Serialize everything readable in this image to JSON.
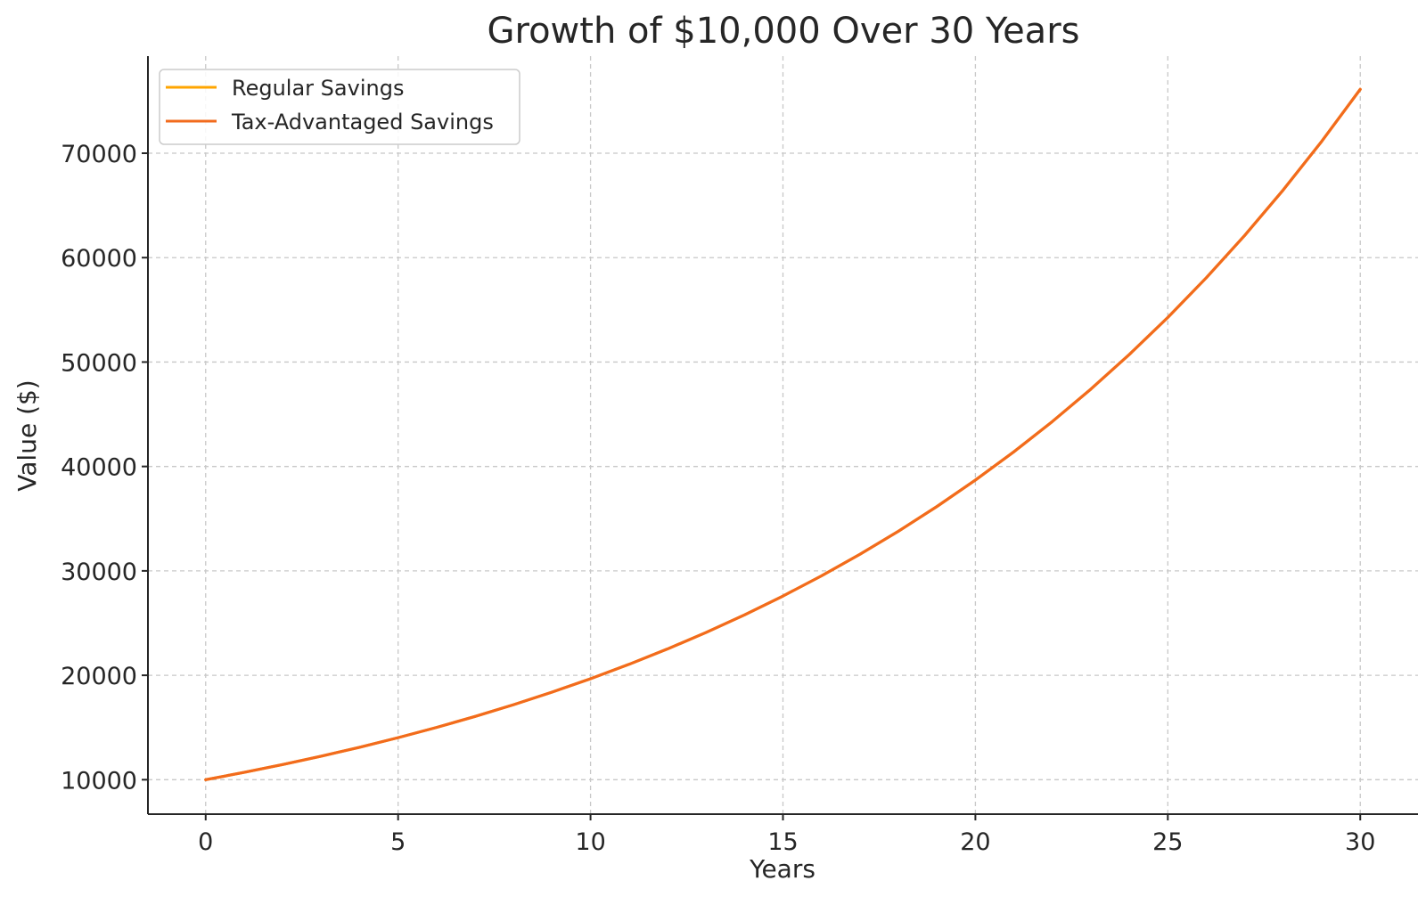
{
  "chart_data": {
    "type": "line",
    "title": "Growth of $10,000 Over 30 Years",
    "xlabel": "Years",
    "ylabel": "Value ($)",
    "xlim": [
      -1.5,
      31.5
    ],
    "ylim": [
      6700,
      79300
    ],
    "xticks": [
      0,
      5,
      10,
      15,
      20,
      25,
      30
    ],
    "yticks": [
      10000,
      20000,
      30000,
      40000,
      50000,
      60000,
      70000
    ],
    "xtick_labels": [
      "0",
      "5",
      "10",
      "15",
      "20",
      "25",
      "30"
    ],
    "ytick_labels": [
      "10000",
      "20000",
      "30000",
      "40000",
      "50000",
      "60000",
      "70000"
    ],
    "grid": true,
    "legend_position": "top-left",
    "x": [
      0,
      1,
      2,
      3,
      4,
      5,
      6,
      7,
      8,
      9,
      10,
      11,
      12,
      13,
      14,
      15,
      16,
      17,
      18,
      19,
      20,
      21,
      22,
      23,
      24,
      25,
      26,
      27,
      28,
      29,
      30
    ],
    "series": [
      {
        "name": "Regular Savings",
        "color": "#ffa500",
        "values": [
          10000,
          10700,
          11449,
          12250,
          13108,
          14026,
          15007,
          16058,
          17182,
          18385,
          19672,
          21049,
          22522,
          24098,
          25785,
          27590,
          29522,
          31588,
          33799,
          36165,
          38697,
          41406,
          44304,
          47405,
          50724,
          54274,
          58074,
          62139,
          66488,
          71143,
          76123
        ]
      },
      {
        "name": "Tax-Advantaged Savings",
        "color": "#f26b1d",
        "values": [
          10000,
          10700,
          11449,
          12250,
          13108,
          14026,
          15007,
          16058,
          17182,
          18385,
          19672,
          21049,
          22522,
          24098,
          25785,
          27590,
          29522,
          31588,
          33799,
          36165,
          38697,
          41406,
          44304,
          47405,
          50724,
          54274,
          58074,
          62139,
          66488,
          71143,
          76123
        ]
      }
    ]
  }
}
